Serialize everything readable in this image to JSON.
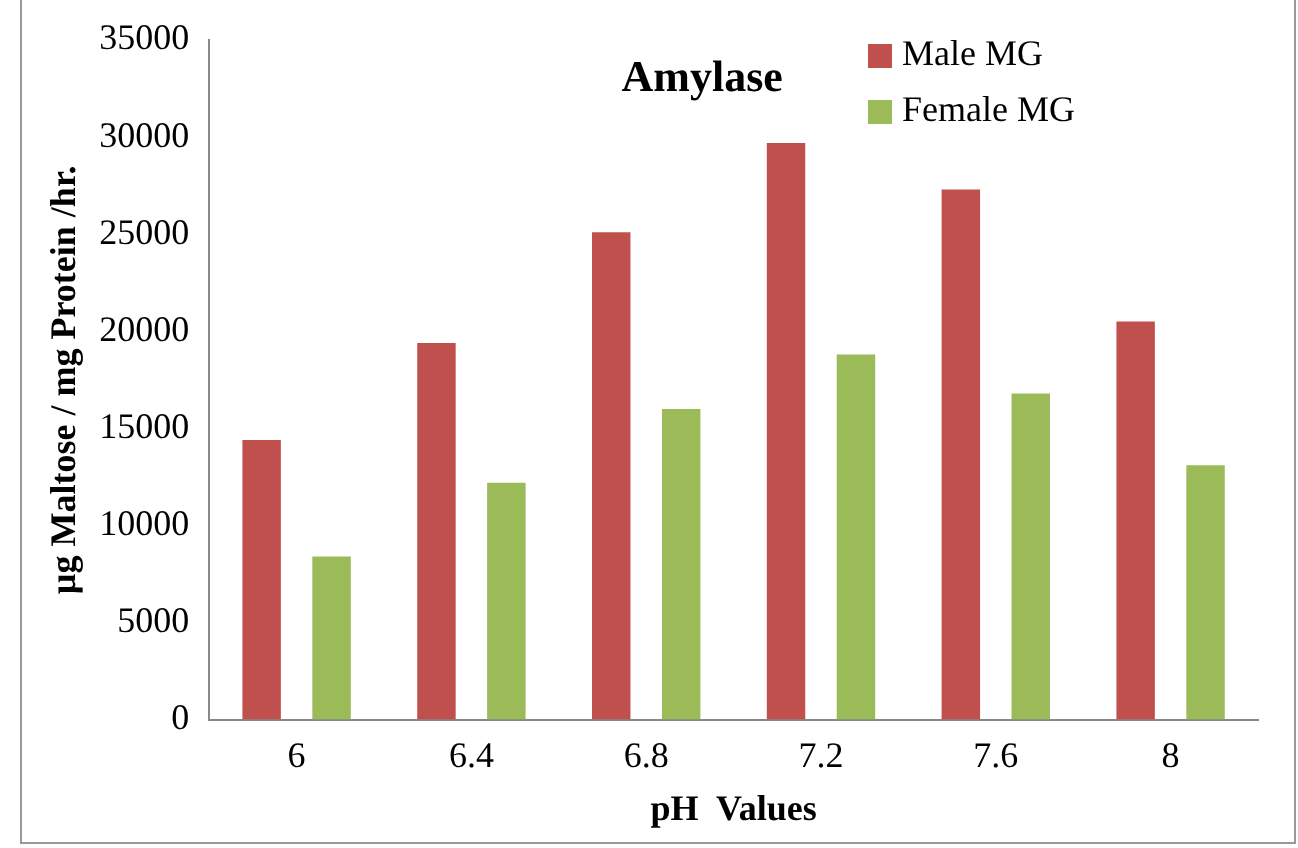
{
  "chart_data": {
    "type": "bar",
    "title": "Amylase",
    "xlabel": "pH  Values",
    "ylabel": "µg Maltose / mg Protein /hr.",
    "categories": [
      "6",
      "6.4",
      "6.8",
      "7.2",
      "7.6",
      "8"
    ],
    "series": [
      {
        "name": "Male MG",
        "color": "#c0504d",
        "values": [
          14400,
          19400,
          25100,
          29700,
          27300,
          20500
        ]
      },
      {
        "name": "Female MG",
        "color": "#9bbb59",
        "values": [
          8400,
          12200,
          16000,
          18800,
          16800,
          13100
        ]
      }
    ],
    "ylim": [
      0,
      35000
    ],
    "yticks": [
      0,
      5000,
      10000,
      15000,
      20000,
      25000,
      30000,
      35000
    ],
    "grid": false,
    "legend": "top right"
  }
}
